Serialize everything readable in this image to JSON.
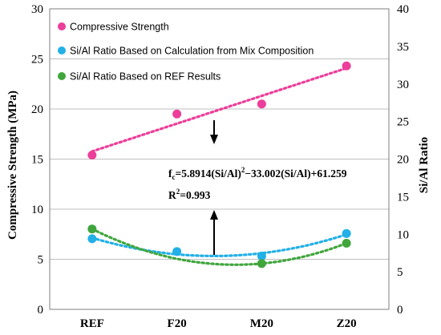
{
  "chart_data": {
    "type": "scatter",
    "categories": [
      "REF",
      "F20",
      "M20",
      "Z20"
    ],
    "ylabel": "Compressive Strength (MPa)",
    "y2label": "Si/Al Ratio",
    "ylim": [
      0,
      30
    ],
    "y2lim": [
      0,
      40
    ],
    "yticks": [
      "0",
      "5",
      "10",
      "15",
      "20",
      "25",
      "30"
    ],
    "y2ticks": [
      "0",
      "5",
      "10",
      "15",
      "20",
      "25",
      "30",
      "35",
      "40"
    ],
    "grid": true,
    "legend_position": "top-left",
    "series": [
      {
        "name": "Compressive Strength",
        "axis": "left",
        "color": "#ec3e9a",
        "values": [
          15.4,
          19.5,
          20.5,
          24.3
        ],
        "trend": "linear"
      },
      {
        "name": "Si/Al Ratio Based on Calculation from Mix Composition",
        "axis": "right",
        "color": "#22b0e6",
        "values": [
          9.4,
          7.7,
          7.1,
          10.1
        ],
        "trend": "quadratic"
      },
      {
        "name": "Si/Al Ratio Based on REF Results",
        "axis": "right",
        "color": "#40a63c",
        "values": [
          10.7,
          null,
          6.1,
          8.8
        ],
        "trend": "quadratic"
      }
    ],
    "annotations": {
      "equation_prefix": "f",
      "equation_subscript": "c",
      "equation_body": "=5.8914(Si/Al)",
      "equation_sup": "2",
      "equation_tail": "−33.002(Si/Al)+61.259",
      "r2_prefix": "R",
      "r2_sup": "2",
      "r2_value": "=0.993"
    }
  }
}
